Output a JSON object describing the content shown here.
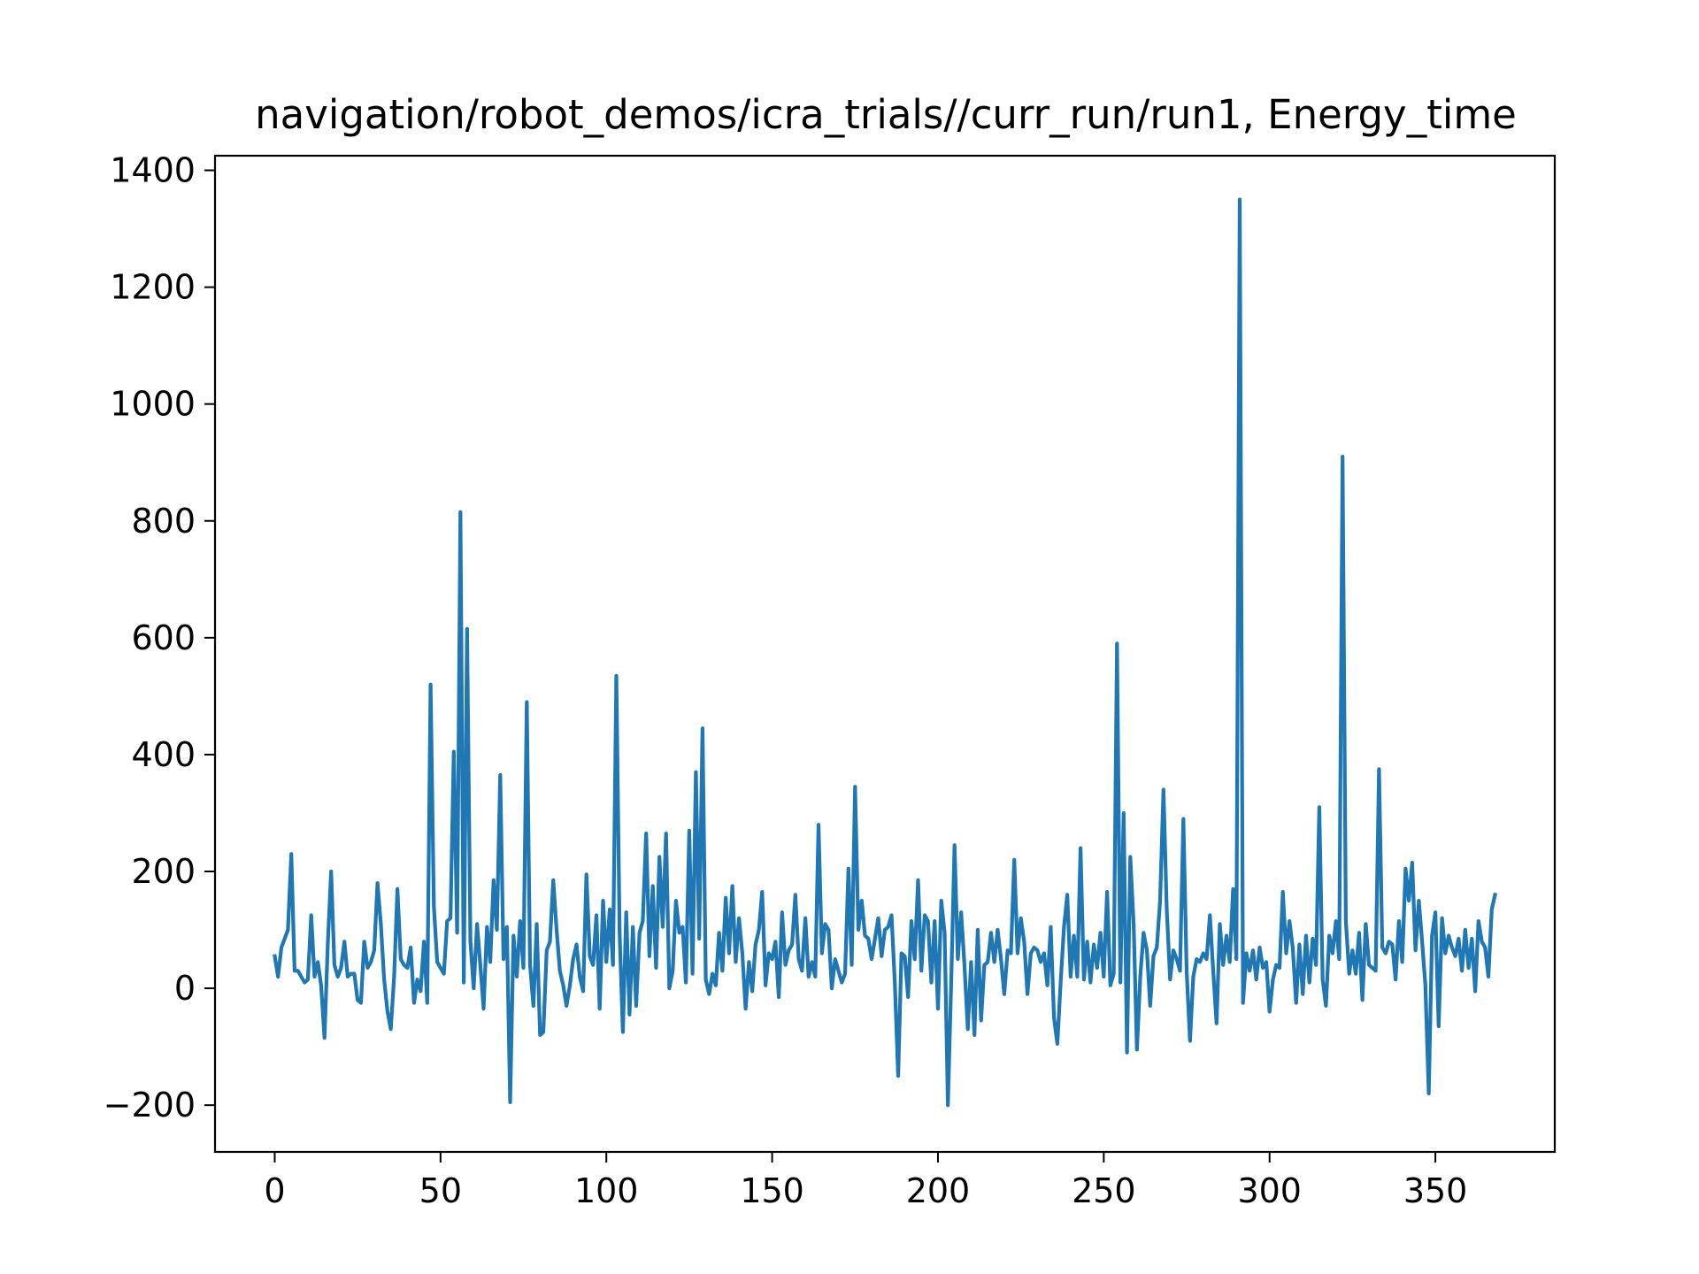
{
  "chart_data": {
    "type": "line",
    "title": "navigation/robot_demos/icra_trials//curr_run/run1, Energy_time",
    "xlabel": "",
    "ylabel": "",
    "xlim": [
      -18,
      386
    ],
    "ylim": [
      -280,
      1425
    ],
    "xticks": [
      0,
      50,
      100,
      150,
      200,
      250,
      300,
      350
    ],
    "xtick_labels": [
      "0",
      "50",
      "100",
      "150",
      "200",
      "250",
      "300",
      "350"
    ],
    "yticks": [
      -200,
      0,
      200,
      400,
      600,
      800,
      1000,
      1200,
      1400
    ],
    "ytick_labels": [
      "−200",
      "0",
      "200",
      "400",
      "600",
      "800",
      "1000",
      "1200",
      "1400"
    ],
    "grid": false,
    "series": [
      {
        "color": "#1f77b4",
        "x_start": 0,
        "x_step": 1,
        "values": [
          55,
          20,
          70,
          85,
          100,
          230,
          30,
          30,
          20,
          10,
          15,
          125,
          20,
          45,
          5,
          -85,
          75,
          200,
          40,
          20,
          35,
          80,
          20,
          25,
          25,
          -20,
          -25,
          80,
          35,
          45,
          65,
          180,
          110,
          15,
          -40,
          -70,
          20,
          170,
          50,
          40,
          35,
          70,
          -25,
          15,
          -5,
          80,
          -25,
          520,
          140,
          45,
          35,
          25,
          115,
          120,
          405,
          95,
          815,
          10,
          615,
          80,
          0,
          110,
          40,
          -35,
          105,
          45,
          185,
          100,
          365,
          50,
          105,
          -195,
          90,
          20,
          115,
          35,
          490,
          40,
          -30,
          110,
          -80,
          -75,
          65,
          80,
          185,
          100,
          30,
          5,
          -30,
          5,
          50,
          75,
          20,
          -5,
          195,
          55,
          40,
          125,
          -35,
          150,
          45,
          135,
          40,
          535,
          95,
          -75,
          130,
          -45,
          105,
          -30,
          95,
          115,
          265,
          55,
          175,
          35,
          225,
          105,
          265,
          0,
          30,
          150,
          95,
          105,
          10,
          270,
          25,
          370,
          85,
          445,
          15,
          -10,
          25,
          5,
          95,
          30,
          155,
          60,
          175,
          45,
          120,
          60,
          -35,
          45,
          -5,
          75,
          100,
          165,
          5,
          60,
          50,
          80,
          -15,
          130,
          40,
          65,
          75,
          160,
          50,
          30,
          120,
          20,
          45,
          20,
          280,
          60,
          110,
          100,
          0,
          50,
          30,
          10,
          25,
          205,
          40,
          345,
          100,
          150,
          90,
          85,
          50,
          85,
          120,
          55,
          100,
          105,
          125,
          10,
          -150,
          60,
          55,
          -15,
          115,
          50,
          185,
          30,
          125,
          115,
          10,
          115,
          -35,
          150,
          95,
          -200,
          15,
          245,
          50,
          130,
          40,
          -70,
          45,
          -80,
          100,
          -55,
          40,
          45,
          95,
          45,
          100,
          50,
          -10,
          65,
          60,
          220,
          60,
          120,
          80,
          -10,
          60,
          70,
          65,
          45,
          60,
          5,
          105,
          -50,
          -95,
          10,
          105,
          160,
          20,
          90,
          20,
          240,
          15,
          80,
          10,
          75,
          35,
          95,
          20,
          165,
          5,
          25,
          590,
          10,
          300,
          -110,
          225,
          110,
          -105,
          20,
          95,
          65,
          -30,
          55,
          70,
          150,
          340,
          135,
          15,
          65,
          50,
          30,
          290,
          30,
          -90,
          20,
          50,
          45,
          60,
          50,
          125,
          30,
          -60,
          110,
          40,
          90,
          45,
          170,
          50,
          1350,
          -25,
          60,
          30,
          65,
          15,
          70,
          35,
          45,
          -40,
          15,
          40,
          35,
          165,
          60,
          115,
          70,
          -25,
          75,
          -10,
          90,
          10,
          85,
          40,
          310,
          15,
          -30,
          90,
          60,
          115,
          50,
          910,
          115,
          25,
          65,
          25,
          95,
          -20,
          110,
          40,
          35,
          30,
          375,
          70,
          60,
          80,
          75,
          15,
          115,
          45,
          205,
          150,
          215,
          65,
          150,
          80,
          5,
          -180,
          90,
          130,
          -65,
          120,
          60,
          90,
          70,
          55,
          85,
          30,
          100,
          35,
          85,
          -5,
          115,
          80,
          70,
          20,
          135,
          160
        ]
      }
    ]
  }
}
